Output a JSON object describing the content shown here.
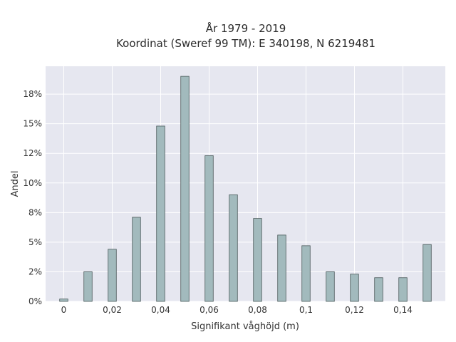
{
  "chart_data": {
    "type": "bar",
    "title": "År 1979 - 2019",
    "subtitle": "Koordinat (Sweref 99 TM): E 340198, N 6219481",
    "xlabel": "Signifikant våghöjd (m)",
    "ylabel": "Andel",
    "xlim": [
      -0.0075,
      0.1575
    ],
    "ylim": [
      0,
      0.1985
    ],
    "x_ticks": [
      {
        "value": 0,
        "label": "0"
      },
      {
        "value": 0.02,
        "label": "0,02"
      },
      {
        "value": 0.04,
        "label": "0,04"
      },
      {
        "value": 0.06,
        "label": "0,06"
      },
      {
        "value": 0.08,
        "label": "0,08"
      },
      {
        "value": 0.1,
        "label": "0,1"
      },
      {
        "value": 0.12,
        "label": "0,12"
      },
      {
        "value": 0.14,
        "label": "0,14"
      }
    ],
    "y_ticks": [
      {
        "value": 0,
        "label": "0%"
      },
      {
        "value": 0.025,
        "label": "2%"
      },
      {
        "value": 0.05,
        "label": "5%"
      },
      {
        "value": 0.075,
        "label": "8%"
      },
      {
        "value": 0.1,
        "label": "10%"
      },
      {
        "value": 0.125,
        "label": "12%"
      },
      {
        "value": 0.15,
        "label": "15%"
      },
      {
        "value": 0.175,
        "label": "18%"
      }
    ],
    "x": [
      0,
      0.01,
      0.02,
      0.03,
      0.04,
      0.05,
      0.06,
      0.07,
      0.08,
      0.09,
      0.1,
      0.11,
      0.12,
      0.13,
      0.14,
      0.15
    ],
    "values": [
      0.002,
      0.025,
      0.044,
      0.071,
      0.148,
      0.19,
      0.123,
      0.09,
      0.07,
      0.056,
      0.047,
      0.025,
      0.023,
      0.02,
      0.02,
      0.048
    ],
    "bar_color": "#a2babd",
    "bar_edge_color": "#4a5a5a",
    "plot_background": "#e6e7f0",
    "grid": true
  }
}
